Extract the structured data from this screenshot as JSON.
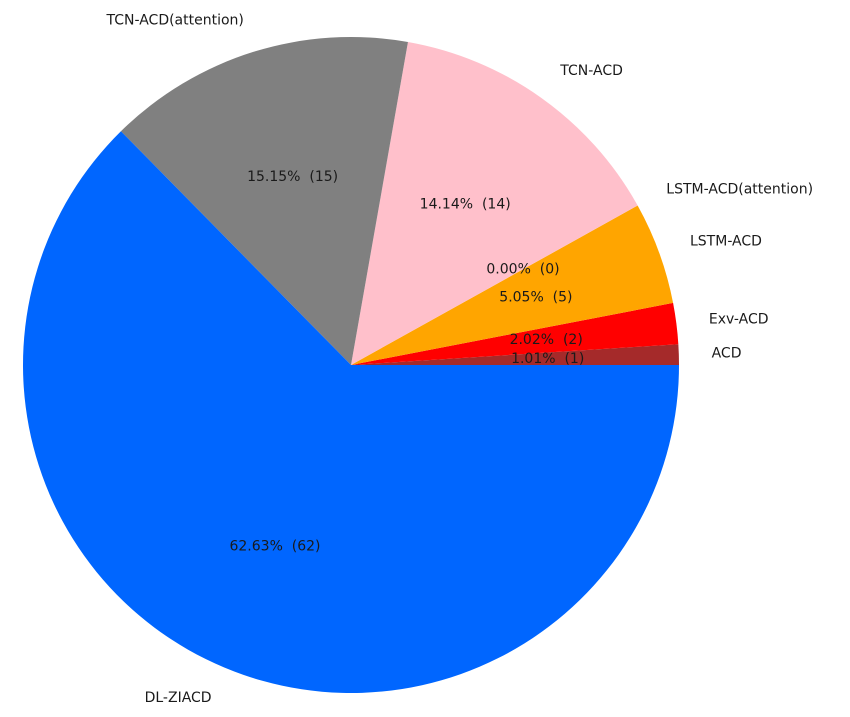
{
  "chart_data": {
    "type": "pie",
    "start_angle": "0 degrees (3 o'clock), counter-clockwise",
    "series": [
      {
        "name": "ACD",
        "value": 1,
        "pct_label": "1.01%  (1)",
        "color": "#a52a2a"
      },
      {
        "name": "Exv-ACD",
        "value": 2,
        "pct_label": "2.02%  (2)",
        "color": "#ff0000"
      },
      {
        "name": "LSTM-ACD",
        "value": 5,
        "pct_label": "5.05%  (5)",
        "color": "#ffa500"
      },
      {
        "name": "LSTM-ACD(attention)",
        "value": 0,
        "pct_label": "0.00%  (0)",
        "color": "#008000"
      },
      {
        "name": "TCN-ACD",
        "value": 14,
        "pct_label": "14.14%  (14)",
        "color": "#ffc0cb"
      },
      {
        "name": "TCN-ACD(attention)",
        "value": 15,
        "pct_label": "15.15%  (15)",
        "color": "#808080"
      },
      {
        "name": "DL-ZIACD",
        "value": 62,
        "pct_label": "62.63%  (62)",
        "color": "#0066ff"
      }
    ]
  }
}
